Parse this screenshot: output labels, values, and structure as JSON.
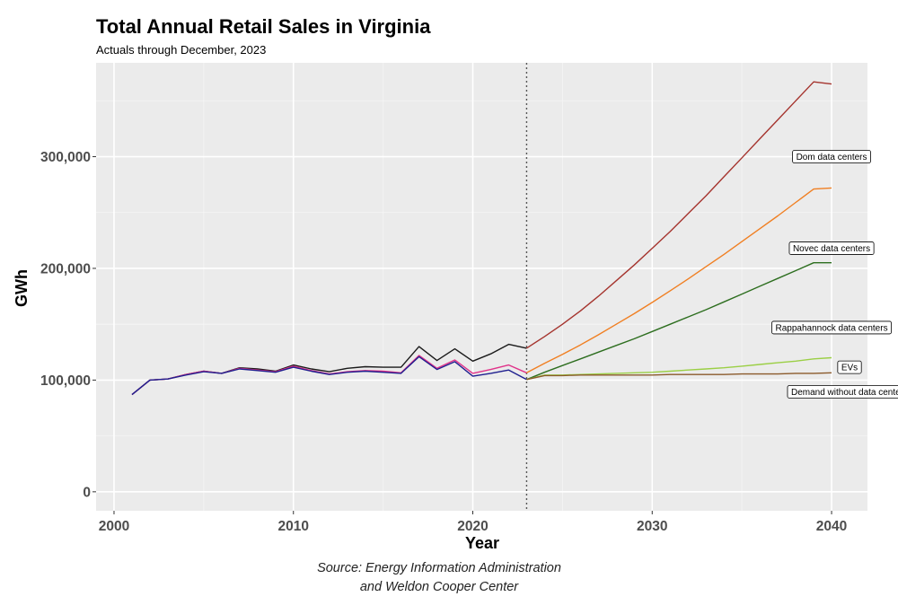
{
  "chart_data": {
    "type": "line",
    "title": "Total Annual Retail Sales in Virginia",
    "subtitle": "Actuals through December, 2023",
    "xlabel": "Year",
    "ylabel": "GWh",
    "xlim": [
      1999,
      2042
    ],
    "ylim": [
      -17000,
      384000
    ],
    "xticks": [
      2000,
      2010,
      2020,
      2030,
      2040
    ],
    "xtick_labels": [
      "2000",
      "2010",
      "2020",
      "2030",
      "2040"
    ],
    "yticks": [
      0,
      100000,
      200000,
      300000
    ],
    "ytick_labels": [
      "0",
      "100,000",
      "200,000",
      "300,000"
    ],
    "grid": true,
    "vline_x": 2023,
    "caption": [
      "Source: Energy Information Administration",
      "and Weldon Cooper Center"
    ],
    "series": [
      {
        "name": "Total actual (black)",
        "color": "#1a1a1a",
        "x": [
          2001,
          2002,
          2003,
          2004,
          2005,
          2006,
          2007,
          2008,
          2009,
          2010,
          2011,
          2012,
          2013,
          2014,
          2015,
          2016,
          2017,
          2018,
          2019,
          2020,
          2021,
          2022,
          2023
        ],
        "y": [
          87000,
          100000,
          101000,
          105000,
          108000,
          106000,
          111000,
          110000,
          108000,
          113500,
          110000,
          107500,
          110500,
          112000,
          111500,
          111500,
          130000,
          117500,
          128000,
          117000,
          123500,
          132000,
          128500
        ]
      },
      {
        "name": "Actual series (pink)",
        "color": "#e0338a",
        "x": [
          2001,
          2002,
          2003,
          2004,
          2005,
          2006,
          2007,
          2008,
          2009,
          2010,
          2011,
          2012,
          2013,
          2014,
          2015,
          2016,
          2017,
          2018,
          2019,
          2020,
          2021,
          2022,
          2023
        ],
        "y": [
          87000,
          100000,
          101000,
          105000,
          108000,
          106000,
          110500,
          109000,
          107500,
          112500,
          108500,
          105500,
          107500,
          108500,
          108000,
          106500,
          122000,
          110500,
          118000,
          106000,
          109500,
          113500,
          106500
        ]
      },
      {
        "name": "Actual series (navy)",
        "color": "#1f1f8f",
        "x": [
          2001,
          2002,
          2003,
          2004,
          2005,
          2006,
          2007,
          2008,
          2009,
          2010,
          2011,
          2012,
          2013,
          2014,
          2015,
          2016,
          2017,
          2018,
          2019,
          2020,
          2021,
          2022,
          2023
        ],
        "y": [
          87000,
          100000,
          101000,
          104500,
          107500,
          106000,
          110000,
          108500,
          107000,
          111500,
          108000,
          105000,
          107000,
          108000,
          107000,
          106000,
          121000,
          109500,
          116500,
          103500,
          106000,
          109000,
          100500
        ]
      },
      {
        "name": "Dom data centers",
        "color": "#a5342e",
        "x": [
          2023,
          2024,
          2025,
          2026,
          2027,
          2028,
          2029,
          2030,
          2031,
          2032,
          2033,
          2034,
          2035,
          2036,
          2037,
          2038,
          2039,
          2040
        ],
        "y": [
          128500,
          139000,
          150000,
          162000,
          175000,
          189000,
          203000,
          218000,
          233000,
          249000,
          265000,
          282000,
          299000,
          316000,
          333000,
          350000,
          367000,
          365000
        ]
      },
      {
        "name": "Novec data centers",
        "color": "#f07f22",
        "x": [
          2023,
          2024,
          2025,
          2026,
          2027,
          2028,
          2029,
          2030,
          2031,
          2032,
          2033,
          2034,
          2035,
          2036,
          2037,
          2038,
          2039,
          2040
        ],
        "y": [
          106500,
          115000,
          123000,
          131500,
          140500,
          150000,
          159500,
          169500,
          180000,
          190500,
          201500,
          212500,
          224000,
          235500,
          247000,
          259000,
          271000,
          272000
        ]
      },
      {
        "name": "Rappahannock data centers",
        "color": "#2d6e1f",
        "x": [
          2023,
          2024,
          2025,
          2026,
          2027,
          2028,
          2029,
          2030,
          2031,
          2032,
          2033,
          2034,
          2035,
          2036,
          2037,
          2038,
          2039,
          2040
        ],
        "y": [
          100500,
          107000,
          113000,
          119000,
          125000,
          131000,
          137000,
          143500,
          150000,
          156500,
          163000,
          170000,
          177000,
          184000,
          191000,
          198000,
          205000,
          205000
        ]
      },
      {
        "name": "EVs",
        "color": "#9bcf45",
        "x": [
          2023,
          2024,
          2025,
          2026,
          2027,
          2028,
          2029,
          2030,
          2031,
          2032,
          2033,
          2034,
          2035,
          2036,
          2037,
          2038,
          2039,
          2040
        ],
        "y": [
          100500,
          104500,
          104500,
          105000,
          105500,
          106000,
          106500,
          107000,
          108000,
          109000,
          110000,
          111000,
          112500,
          114000,
          115500,
          117000,
          119000,
          120000
        ]
      },
      {
        "name": "Demand without data centers",
        "color": "#8b5a2b",
        "x": [
          2023,
          2024,
          2025,
          2026,
          2027,
          2028,
          2029,
          2030,
          2031,
          2032,
          2033,
          2034,
          2035,
          2036,
          2037,
          2038,
          2039,
          2040
        ],
        "y": [
          100500,
          104000,
          104000,
          104500,
          104500,
          104500,
          104500,
          104500,
          105000,
          105000,
          105000,
          105000,
          105500,
          105500,
          105500,
          106000,
          106000,
          106500
        ]
      }
    ],
    "annotations": [
      {
        "text": "Dom data centers",
        "x": 2040,
        "y": 300000
      },
      {
        "text": "Novec data centers",
        "x": 2040,
        "y": 218000
      },
      {
        "text": "Rappahannock data centers",
        "x": 2040,
        "y": 147000
      },
      {
        "text": "EVs",
        "x": 2041,
        "y": 111500
      },
      {
        "text": "Demand without data centers",
        "x": 2041,
        "y": 89500
      }
    ]
  }
}
